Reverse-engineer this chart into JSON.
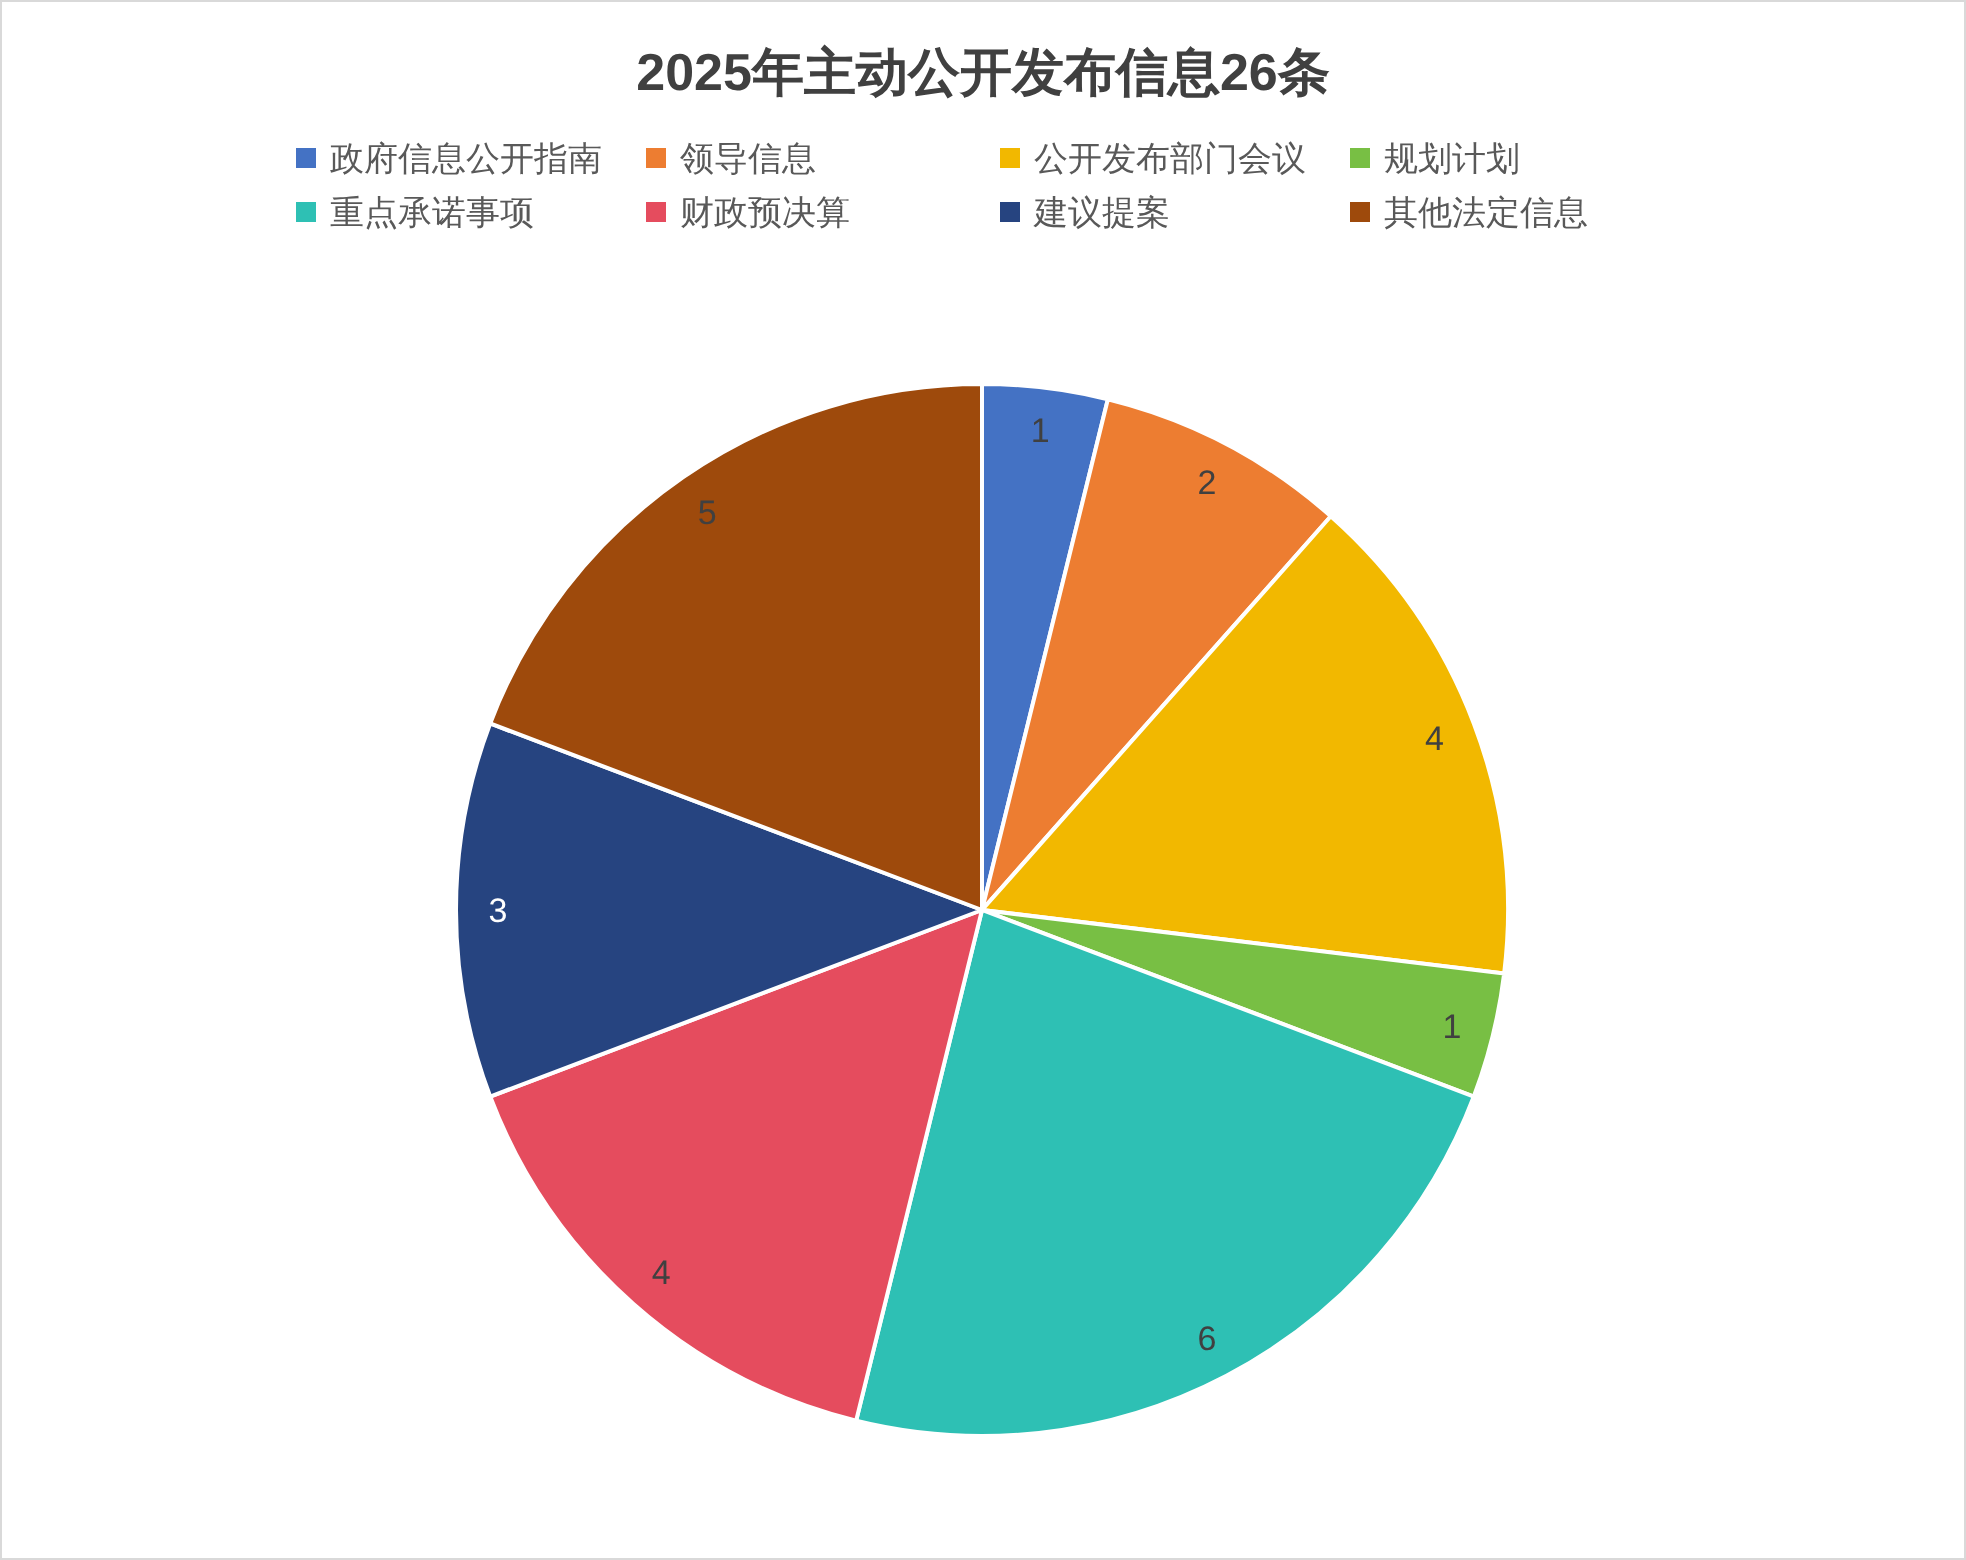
{
  "chart_data": {
    "type": "pie",
    "title": "2025年主动公开发布信息26条",
    "categories": [
      "政府信息公开指南",
      "领导信息",
      "公开发布部门会议",
      "规划计划",
      "重点承诺事项",
      "财政预决算",
      "建议提案",
      "其他法定信息"
    ],
    "values": [
      1,
      2,
      4,
      1,
      6,
      4,
      3,
      5
    ],
    "colors": [
      "#4472c4",
      "#ed7d31",
      "#f2b800",
      "#78bf44",
      "#2ec0b4",
      "#e54c5e",
      "#264480",
      "#9e4a0c"
    ],
    "legend": "top",
    "data_labels": true
  }
}
